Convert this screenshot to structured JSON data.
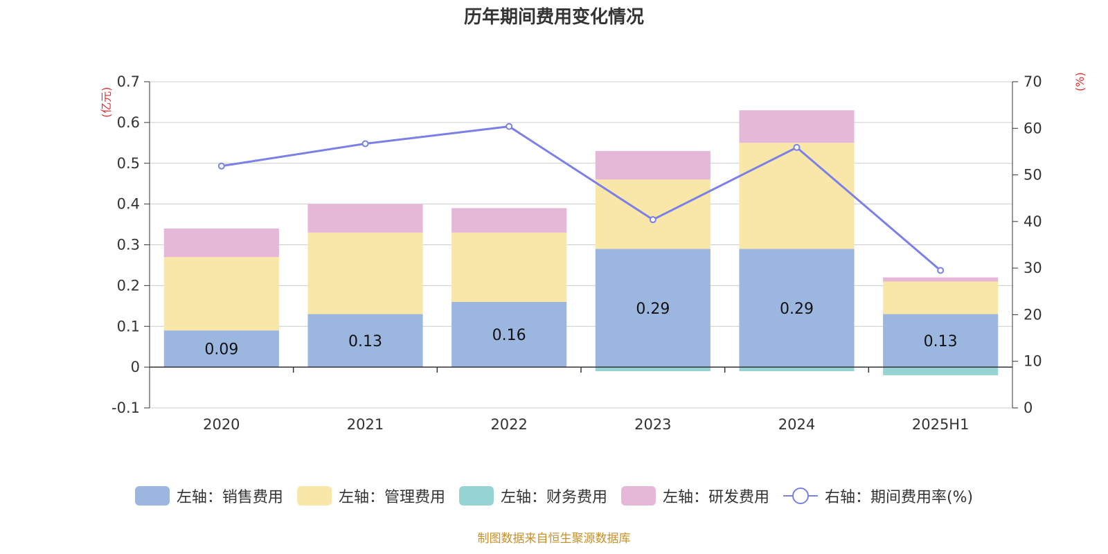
{
  "chart_data": {
    "type": "bar",
    "title": "历年期间费用变化情况",
    "left_axis_unit": "(亿元)",
    "right_axis_unit": "(%)",
    "categories": [
      "2020",
      "2021",
      "2022",
      "2023",
      "2024",
      "2025H1"
    ],
    "left_ylim": [
      -0.1,
      0.7
    ],
    "left_ticks": [
      "-0.1",
      "0",
      "0.1",
      "0.2",
      "0.3",
      "0.4",
      "0.5",
      "0.6",
      "0.7"
    ],
    "right_ylim": [
      0,
      70
    ],
    "right_ticks": [
      "0",
      "10",
      "20",
      "30",
      "40",
      "50",
      "60",
      "70"
    ],
    "grid": true,
    "legend_position": "bottom",
    "series": [
      {
        "name": "左轴：销售费用",
        "type": "bar",
        "axis": "left",
        "color": "#9bb7e0",
        "values": [
          0.09,
          0.13,
          0.16,
          0.29,
          0.29,
          0.13
        ],
        "labels": [
          "0.09",
          "0.13",
          "0.16",
          "0.29",
          "0.29",
          "0.13"
        ]
      },
      {
        "name": "左轴：管理费用",
        "type": "bar",
        "axis": "left",
        "color": "#f8e7a8",
        "values": [
          0.18,
          0.2,
          0.17,
          0.17,
          0.26,
          0.08
        ]
      },
      {
        "name": "左轴：财务费用",
        "type": "bar",
        "axis": "left",
        "color": "#96d4d4",
        "values": [
          0,
          0,
          0,
          -0.01,
          -0.01,
          -0.02
        ]
      },
      {
        "name": "左轴：研发费用",
        "type": "bar",
        "axis": "left",
        "color": "#e6b8d8",
        "values": [
          0.07,
          0.07,
          0.06,
          0.07,
          0.08,
          0.01
        ]
      },
      {
        "name": "右轴：期间费用率(%)",
        "type": "line",
        "axis": "right",
        "color": "#7b7fe8",
        "values": [
          51.9,
          56.7,
          60.4,
          40.4,
          55.9,
          29.5
        ]
      }
    ]
  },
  "source": "制图数据来自恒生聚源数据库"
}
